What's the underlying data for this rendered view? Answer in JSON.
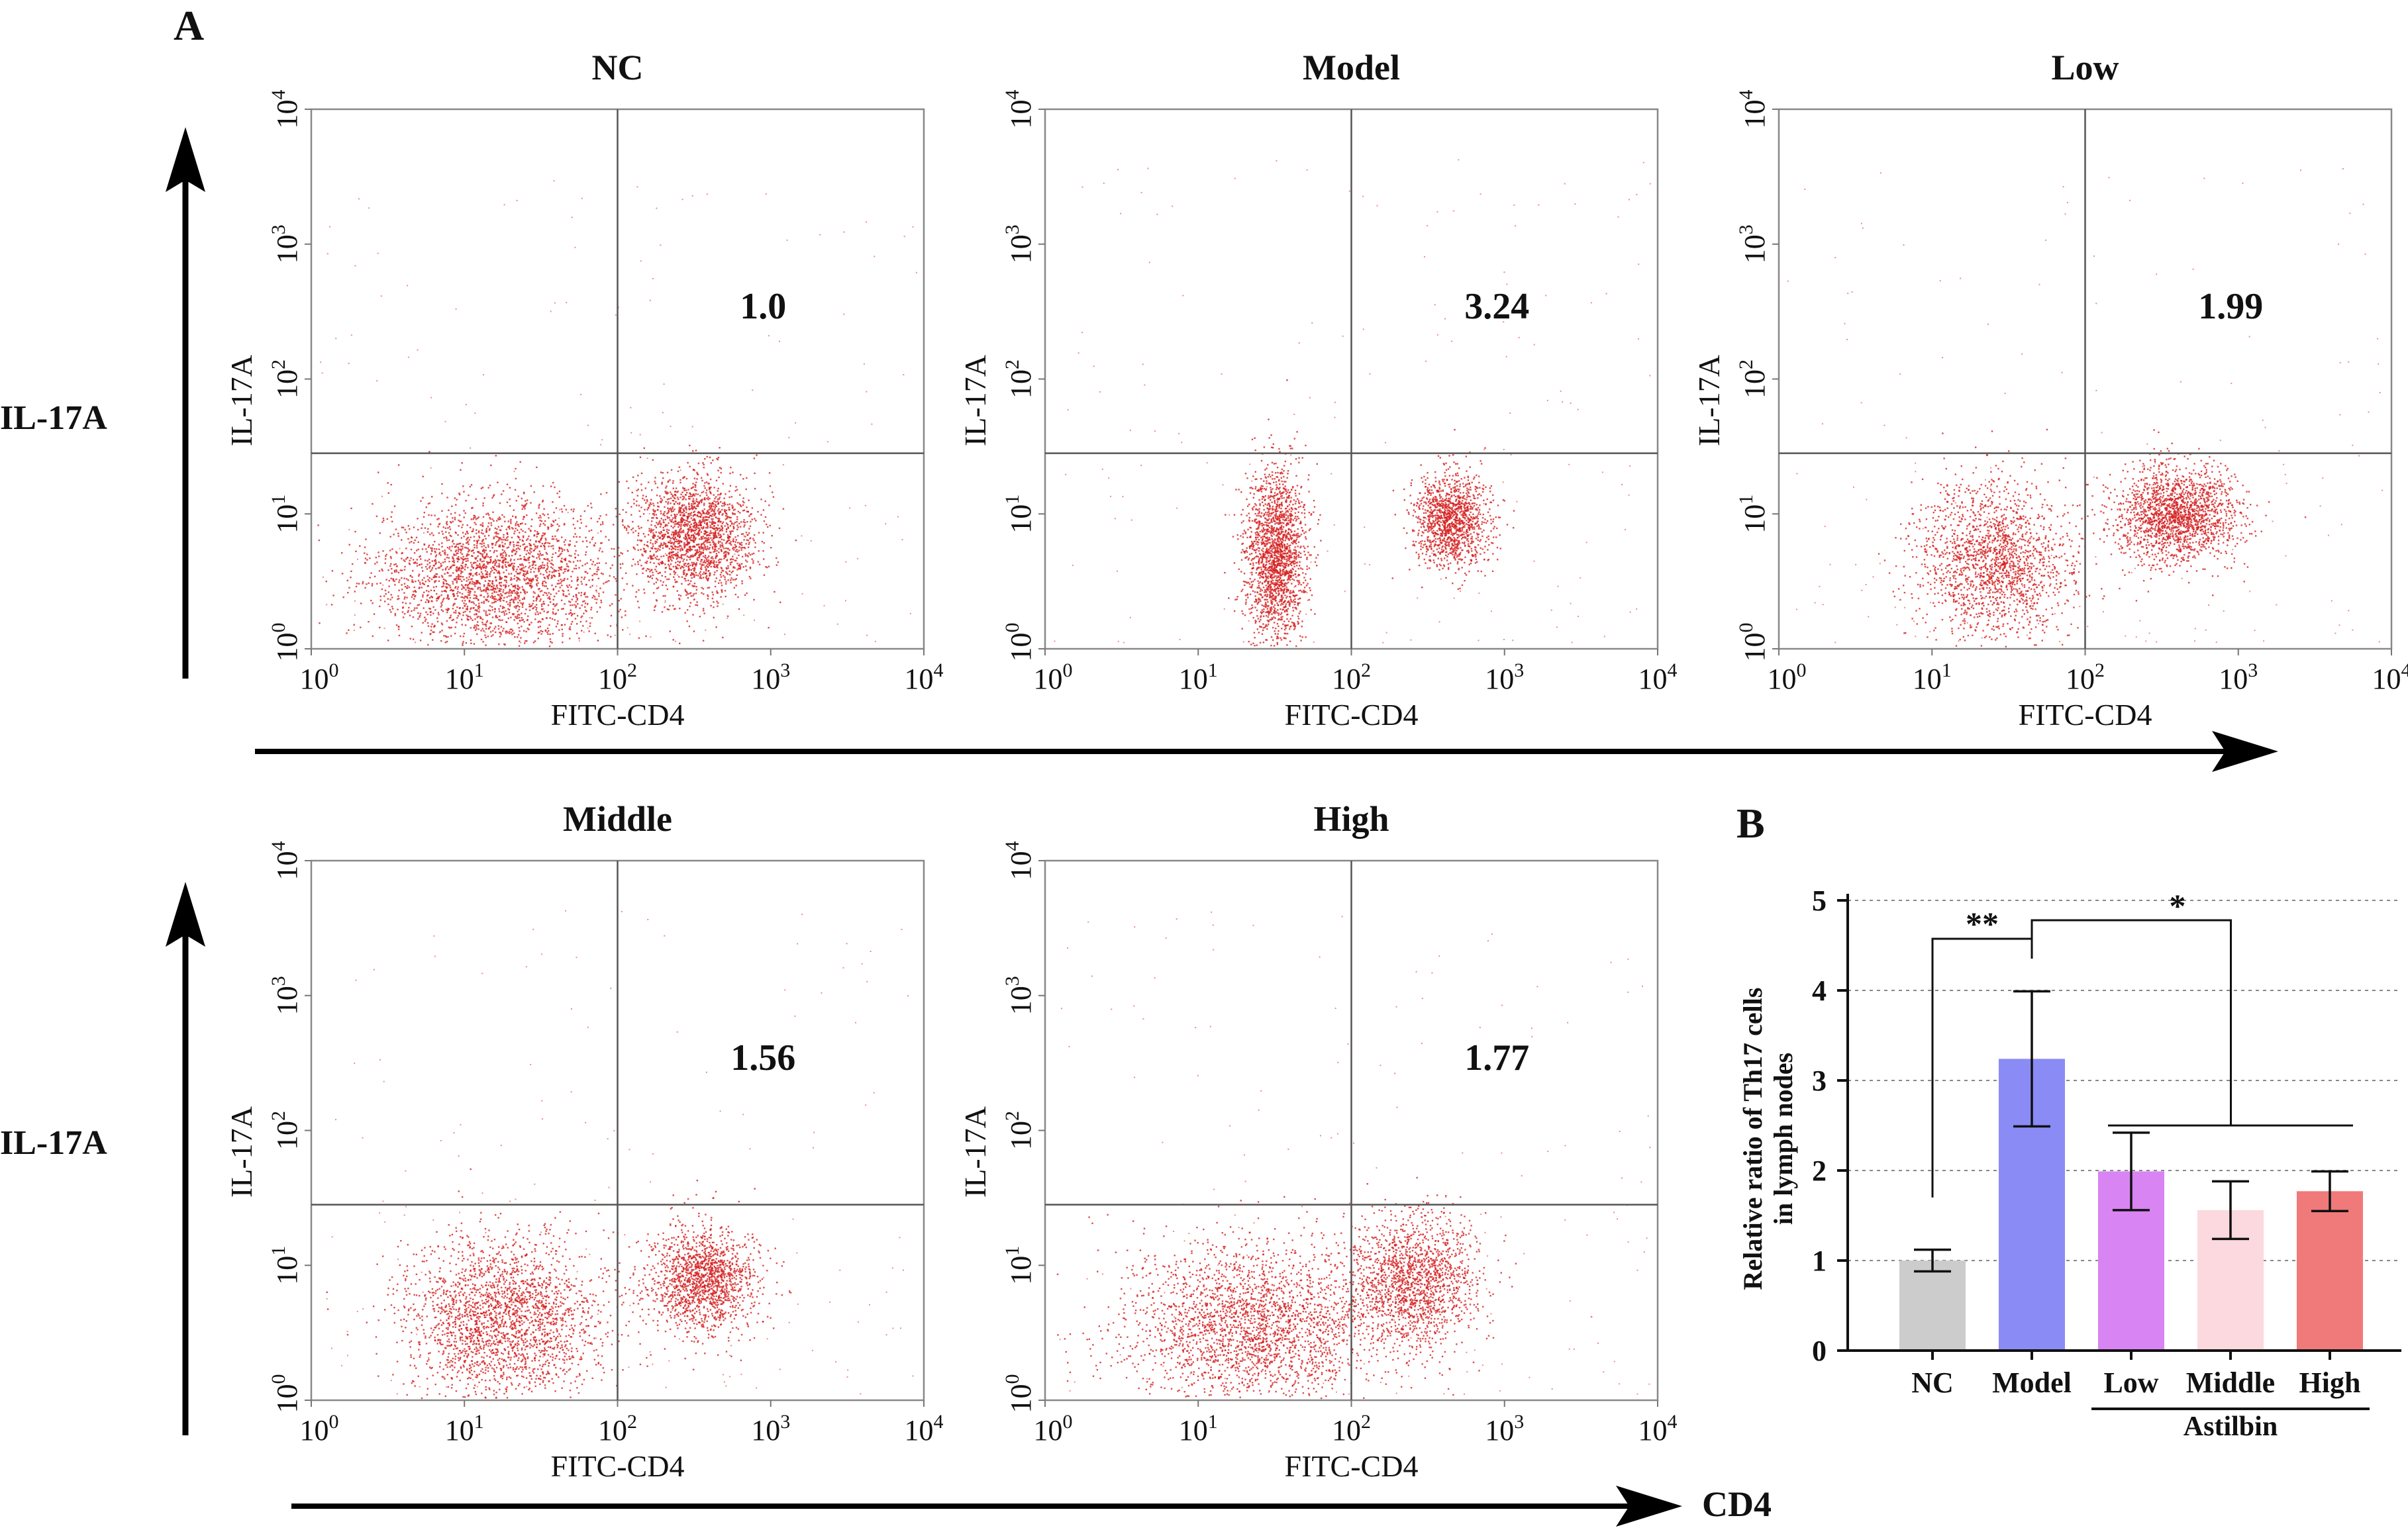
{
  "panel_labels": {
    "a": "A",
    "b": "B"
  },
  "axis_arrows": {
    "y_label": "IL-17A",
    "x_label": "CD4"
  },
  "flow_common": {
    "xlabel": "FITC-CD4",
    "ylabel": "IL-17A",
    "tick_base": "10",
    "tick_exponents": [
      "0",
      "1",
      "2",
      "3",
      "4"
    ],
    "dot_color": "#d42020",
    "gate_position_log10": {
      "x": 2.0,
      "y": 1.45
    }
  },
  "chart_data": [
    {
      "type": "scatter",
      "title": "NC",
      "quadrant_value": "1.0",
      "xlabel": "FITC-CD4",
      "ylabel": "IL-17A",
      "xlim_log10": [
        0,
        4
      ],
      "ylim_log10": [
        0,
        4
      ],
      "populations": [
        {
          "cx": 1.2,
          "cy": 0.55,
          "sx": 0.4,
          "sy": 0.28,
          "n": 2600
        },
        {
          "cx": 2.5,
          "cy": 0.85,
          "sx": 0.2,
          "sy": 0.22,
          "n": 1900
        }
      ]
    },
    {
      "type": "scatter",
      "title": "Model",
      "quadrant_value": "3.24",
      "xlabel": "FITC-CD4",
      "ylabel": "IL-17A",
      "xlim_log10": [
        0,
        4
      ],
      "ylim_log10": [
        0,
        4
      ],
      "populations": [
        {
          "cx": 1.5,
          "cy": 0.7,
          "sx": 0.1,
          "sy": 0.32,
          "n": 1900
        },
        {
          "cx": 2.65,
          "cy": 0.95,
          "sx": 0.12,
          "sy": 0.17,
          "n": 1300
        }
      ]
    },
    {
      "type": "scatter",
      "title": "Low",
      "quadrant_value": "1.99",
      "xlabel": "FITC-CD4",
      "ylabel": "IL-17A",
      "xlim_log10": [
        0,
        4
      ],
      "ylim_log10": [
        0,
        4
      ],
      "populations": [
        {
          "cx": 1.4,
          "cy": 0.65,
          "sx": 0.25,
          "sy": 0.3,
          "n": 1800
        },
        {
          "cx": 2.6,
          "cy": 1.0,
          "sx": 0.2,
          "sy": 0.18,
          "n": 1800
        }
      ]
    },
    {
      "type": "scatter",
      "title": "Middle",
      "quadrant_value": "1.56",
      "xlabel": "FITC-CD4",
      "ylabel": "IL-17A",
      "xlim_log10": [
        0,
        4
      ],
      "ylim_log10": [
        0,
        4
      ],
      "populations": [
        {
          "cx": 1.25,
          "cy": 0.6,
          "sx": 0.32,
          "sy": 0.3,
          "n": 2300
        },
        {
          "cx": 2.55,
          "cy": 0.9,
          "sx": 0.18,
          "sy": 0.2,
          "n": 1500
        }
      ]
    },
    {
      "type": "scatter",
      "title": "High",
      "quadrant_value": "1.77",
      "xlabel": "FITC-CD4",
      "ylabel": "IL-17A",
      "xlim_log10": [
        0,
        4
      ],
      "ylim_log10": [
        0,
        4
      ],
      "populations": [
        {
          "cx": 1.35,
          "cy": 0.55,
          "sx": 0.42,
          "sy": 0.3,
          "n": 2500
        },
        {
          "cx": 2.4,
          "cy": 0.9,
          "sx": 0.22,
          "sy": 0.25,
          "n": 1600
        }
      ]
    },
    {
      "type": "bar",
      "categories": [
        "NC",
        "Model",
        "Low",
        "Middle",
        "High"
      ],
      "values": [
        1.0,
        3.24,
        1.99,
        1.56,
        1.77
      ],
      "errors": [
        0.12,
        0.75,
        0.43,
        0.32,
        0.22
      ],
      "colors": [
        "#cccccc",
        "#8b8bf5",
        "#d884f3",
        "#fcd9de",
        "#f07a7a"
      ],
      "ylabel": "Relative ratio of Th17 cells in lymph nodes",
      "ylabel_lines": [
        "Relative ratio of Th17 cells",
        "in lymph nodes"
      ],
      "ylim": [
        0,
        5
      ],
      "yticks": [
        "0",
        "1",
        "2",
        "3",
        "4",
        "5"
      ],
      "grid": "dotted horizontal",
      "group_label": "Astilbin",
      "significance": [
        {
          "from": "NC",
          "to": "Model",
          "label": "**"
        },
        {
          "from": "Model",
          "to": "Low, Middle, High",
          "label": "*"
        }
      ]
    }
  ]
}
